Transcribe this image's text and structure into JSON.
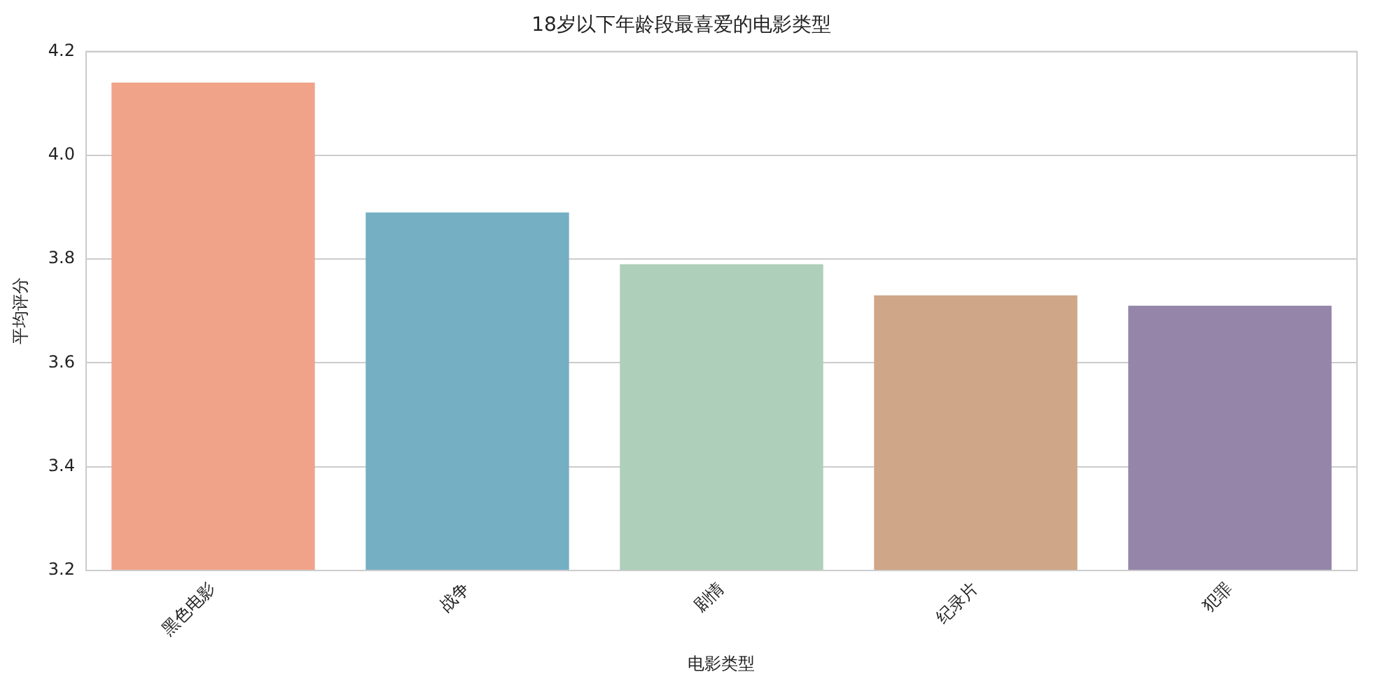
{
  "chart_data": {
    "type": "bar",
    "title": "18岁以下年龄段最喜爱的电影类型",
    "xlabel": "电影类型",
    "ylabel": "平均评分",
    "categories": [
      "黑色电影",
      "战争",
      "剧情",
      "纪录片",
      "犯罪"
    ],
    "values": [
      4.14,
      3.89,
      3.79,
      3.73,
      3.71
    ],
    "colors": [
      "#f0a389",
      "#74afc4",
      "#aecfba",
      "#cfa688",
      "#9485a9"
    ],
    "ylim": [
      3.2,
      4.2
    ],
    "yticks": [
      3.2,
      3.4,
      3.6,
      3.8,
      {
        "value": 4,
        "label": "4.0"
      },
      4.2
    ],
    "grid": "y",
    "legend": false
  }
}
